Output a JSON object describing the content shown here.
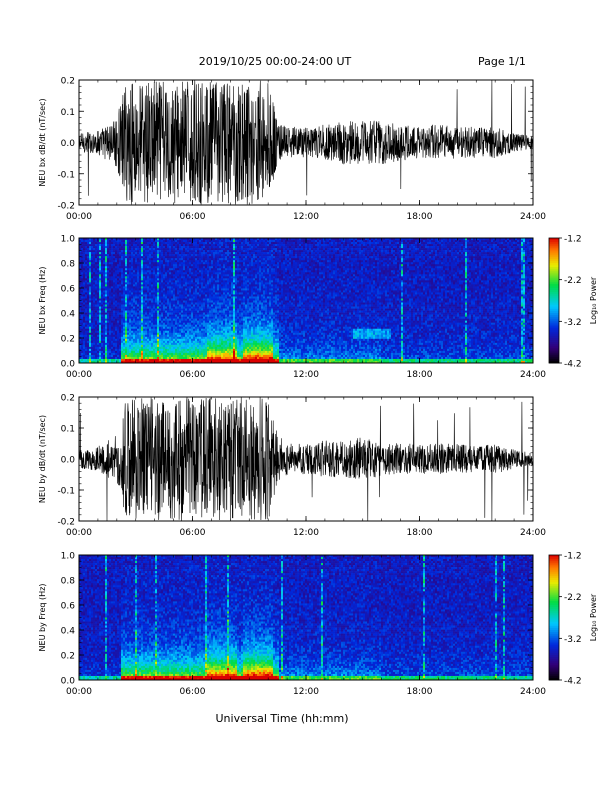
{
  "header": {
    "title": "2019/10/25  00:00-24:00 UT",
    "page": "Page 1/1"
  },
  "footer": {
    "xlabel": "Universal Time (hh:mm)"
  },
  "chart_data": [
    {
      "id": "bx-waveform",
      "type": "line",
      "ylabel": "NEU bx dB/dt (nT/sec)",
      "xlim": [
        "00:00",
        "24:00"
      ],
      "ylim": [
        -0.2,
        0.2
      ],
      "x_ticks": [
        "00:00",
        "06:00",
        "12:00",
        "18:00",
        "24:00"
      ],
      "y_ticks": [
        "0.2",
        "0.1",
        "0.0",
        "-0.1",
        "-0.2"
      ],
      "envelope": {
        "x_hours": [
          0,
          1,
          2,
          2.5,
          3,
          4,
          5,
          6,
          7,
          8,
          9,
          10,
          10.5,
          11,
          12,
          13,
          14,
          15,
          16,
          17,
          18,
          19,
          20,
          21,
          22,
          23,
          24
        ],
        "amplitude": [
          0.03,
          0.04,
          0.08,
          0.2,
          0.2,
          0.2,
          0.2,
          0.2,
          0.2,
          0.2,
          0.2,
          0.2,
          0.07,
          0.05,
          0.05,
          0.06,
          0.07,
          0.07,
          0.07,
          0.06,
          0.05,
          0.06,
          0.05,
          0.05,
          0.05,
          0.03,
          0.02
        ]
      }
    },
    {
      "id": "bx-spectrogram",
      "type": "heatmap",
      "ylabel": "NEU bx Freq (Hz)",
      "xlim": [
        "00:00",
        "24:00"
      ],
      "ylim": [
        0.0,
        1.0
      ],
      "x_ticks": [
        "00:00",
        "06:00",
        "12:00",
        "18:00",
        "24:00"
      ],
      "y_ticks": [
        "1.0",
        "0.8",
        "0.6",
        "0.4",
        "0.2",
        "0.0"
      ],
      "colorbar": {
        "label": "Log₁₀ Power",
        "ticks": [
          "-1.2",
          "-2.2",
          "-3.2",
          "-4.2"
        ],
        "range": [
          -4.2,
          -1.2
        ]
      }
    },
    {
      "id": "by-waveform",
      "type": "line",
      "ylabel": "NEU by dB/dt (nT/sec)",
      "xlim": [
        "00:00",
        "24:00"
      ],
      "ylim": [
        -0.2,
        0.2
      ],
      "x_ticks": [
        "00:00",
        "06:00",
        "12:00",
        "18:00",
        "24:00"
      ],
      "y_ticks": [
        "0.2",
        "0.1",
        "0.0",
        "-0.1",
        "-0.2"
      ],
      "envelope": {
        "x_hours": [
          0,
          1,
          2,
          2.5,
          3,
          4,
          5,
          6,
          7,
          8,
          9,
          10,
          10.5,
          11,
          12,
          13,
          14,
          15,
          16,
          17,
          18,
          19,
          20,
          21,
          22,
          23,
          24
        ],
        "amplitude": [
          0.03,
          0.04,
          0.08,
          0.2,
          0.2,
          0.2,
          0.2,
          0.2,
          0.2,
          0.2,
          0.2,
          0.2,
          0.08,
          0.05,
          0.05,
          0.06,
          0.06,
          0.07,
          0.06,
          0.05,
          0.05,
          0.05,
          0.05,
          0.04,
          0.05,
          0.03,
          0.02
        ]
      }
    },
    {
      "id": "by-spectrogram",
      "type": "heatmap",
      "ylabel": "NEU by Freq (Hz)",
      "xlim": [
        "00:00",
        "24:00"
      ],
      "ylim": [
        0.0,
        1.0
      ],
      "x_ticks": [
        "00:00",
        "06:00",
        "12:00",
        "18:00",
        "24:00"
      ],
      "y_ticks": [
        "1.0",
        "0.8",
        "0.6",
        "0.4",
        "0.2",
        "0.0"
      ],
      "colorbar": {
        "label": "Log₁₀ Power",
        "ticks": [
          "-1.2",
          "-2.2",
          "-3.2",
          "-4.2"
        ],
        "range": [
          -4.2,
          -1.2
        ]
      }
    }
  ]
}
